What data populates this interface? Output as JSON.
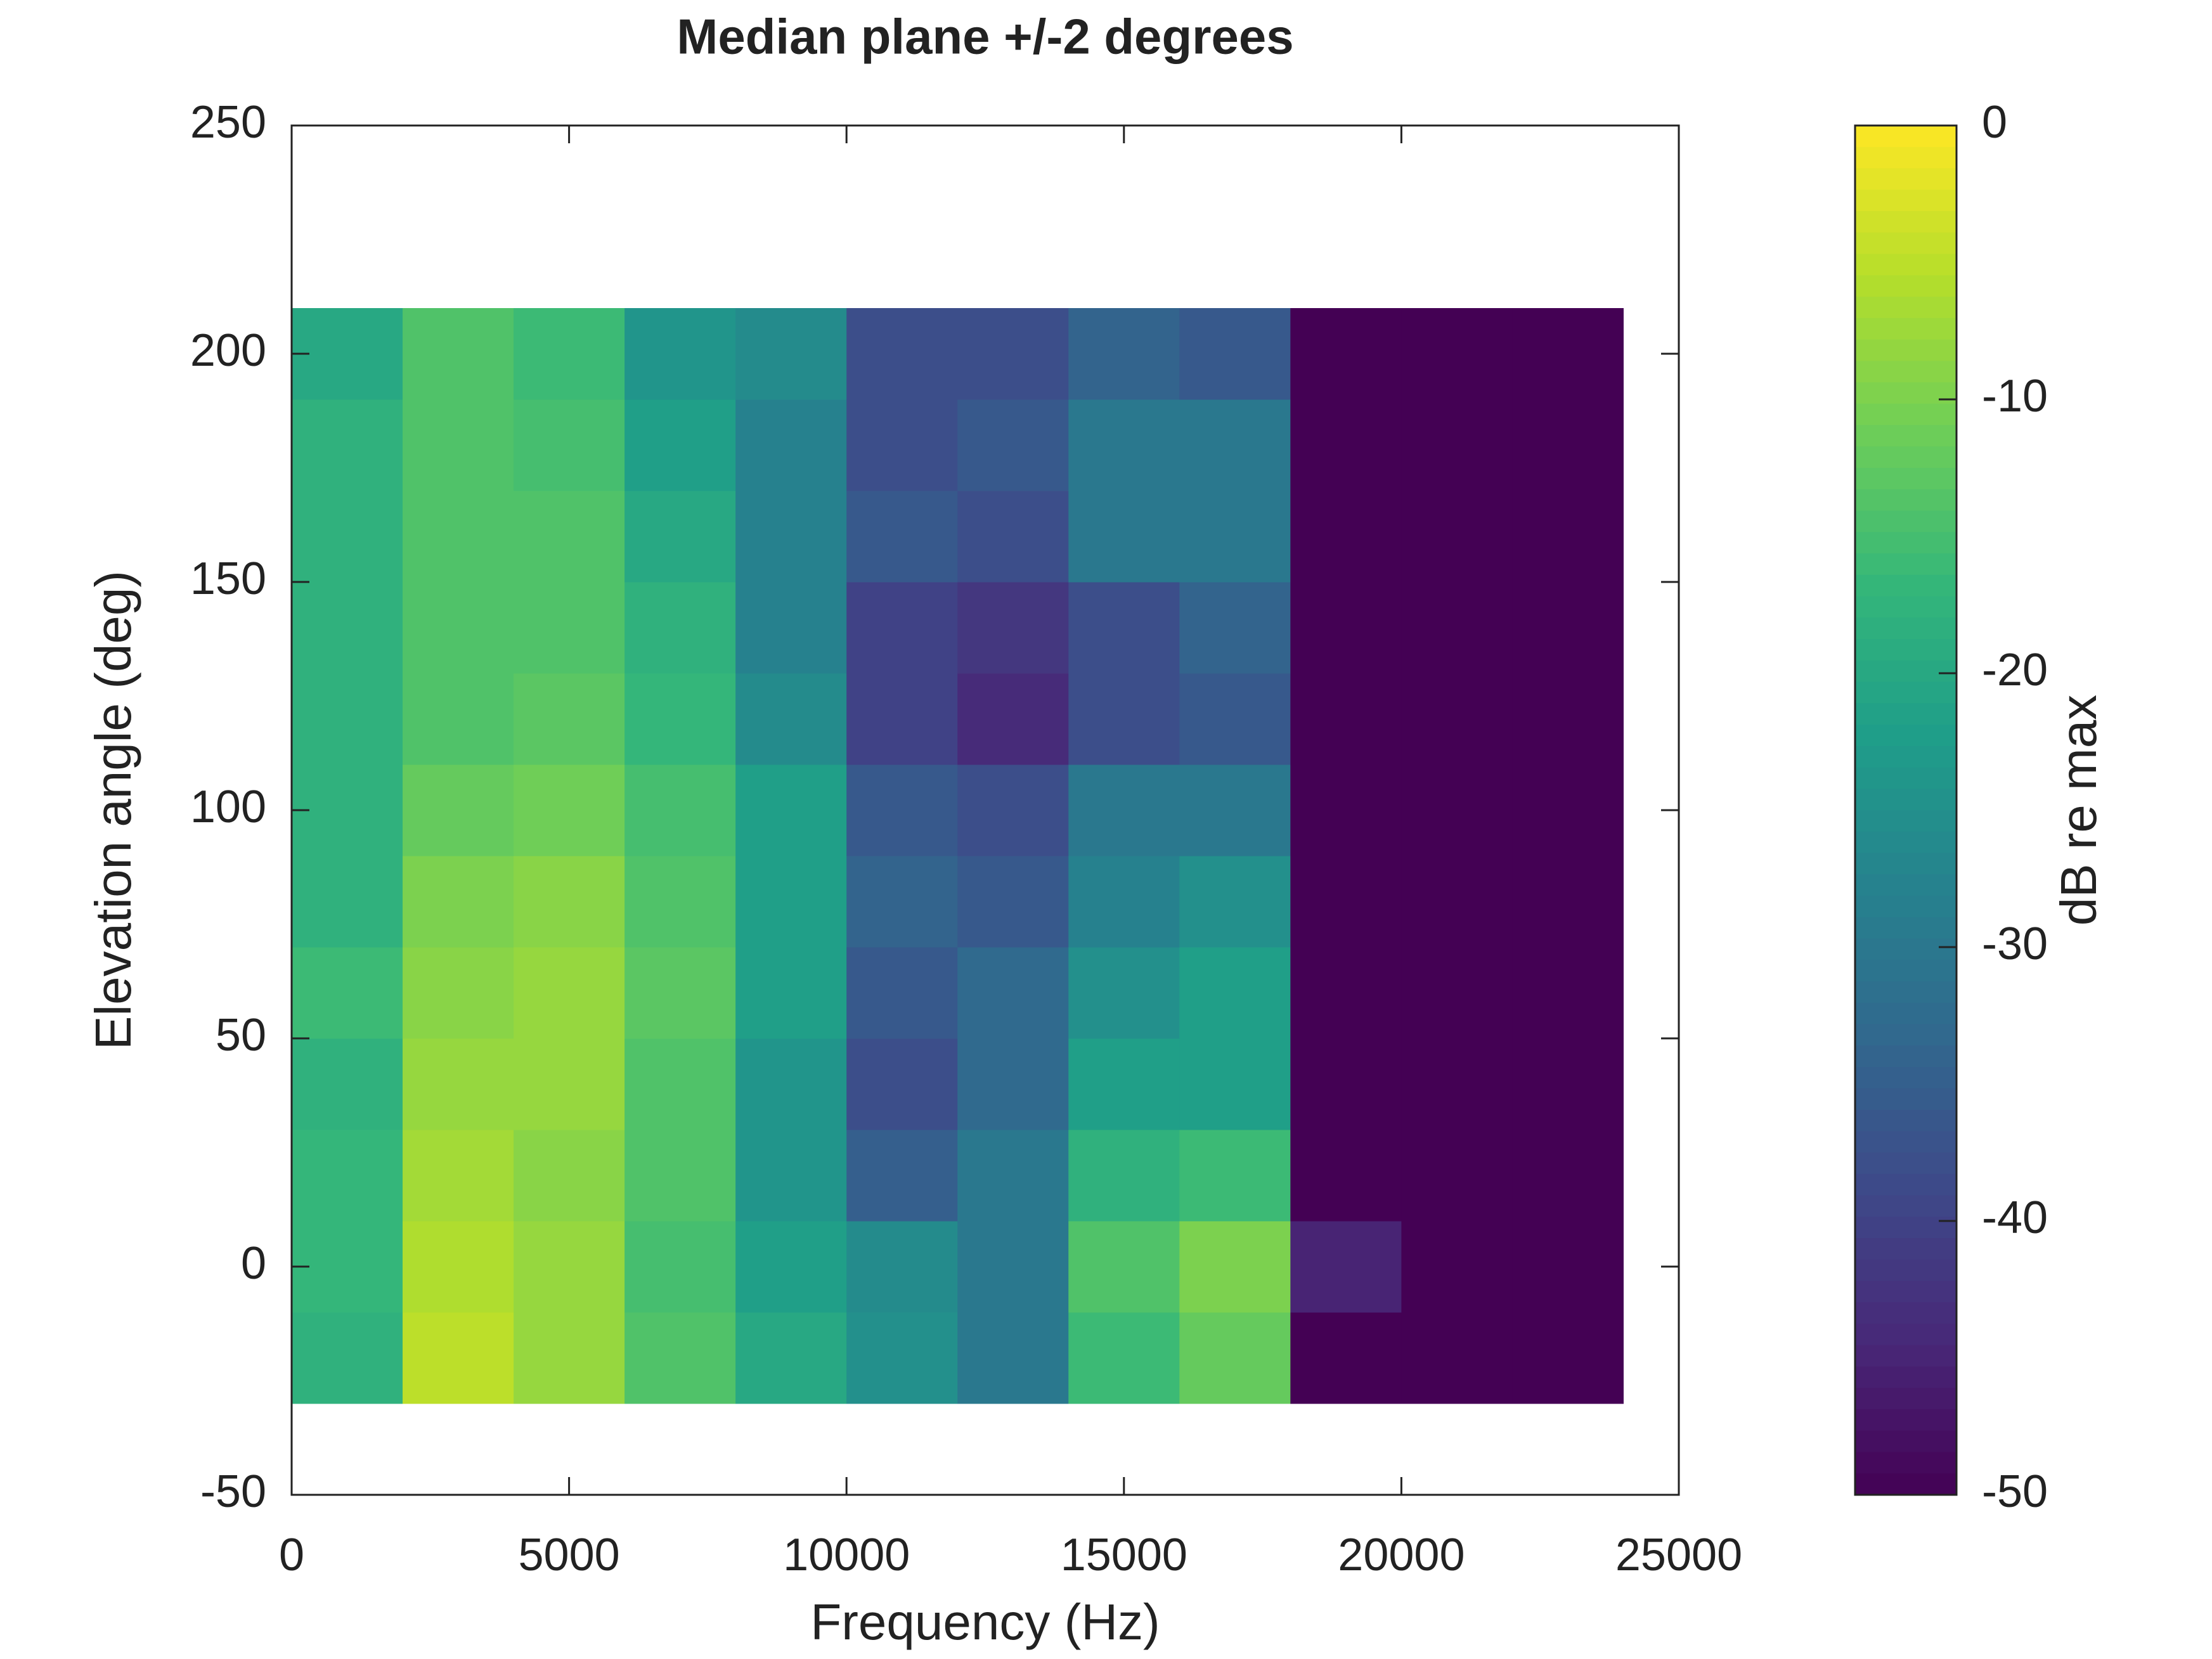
{
  "chart_data": {
    "type": "heatmap",
    "title": "Median plane +/-2 degrees",
    "xlabel": "Frequency (Hz)",
    "ylabel": "Elevation angle (deg)",
    "colorbar_label": "dB re max",
    "xlim": [
      0,
      25000
    ],
    "ylim": [
      -50,
      250
    ],
    "xticks": [
      0,
      5000,
      10000,
      15000,
      20000,
      25000
    ],
    "yticks": [
      -50,
      0,
      50,
      100,
      150,
      200,
      250
    ],
    "clim": [
      -50,
      0
    ],
    "cticks": [
      -50,
      -40,
      -30,
      -20,
      -10,
      0
    ],
    "colormap": [
      "#440154",
      "#482878",
      "#3e4989",
      "#31688e",
      "#26828e",
      "#1f9e89",
      "#35b779",
      "#6ece58",
      "#b5de2b",
      "#fde725"
    ],
    "xbins": [
      0,
      2000,
      4000,
      6000,
      8000,
      10000,
      12000,
      14000,
      16000,
      18000,
      20000,
      22000,
      24000
    ],
    "ybins": [
      -30,
      -10,
      10,
      30,
      50,
      70,
      90,
      110,
      130,
      150,
      170,
      190,
      210
    ],
    "values": [
      [
        -18,
        -5,
        -8,
        -14,
        -20,
        -25,
        -30,
        -16,
        -12,
        -50,
        -50,
        -50
      ],
      [
        -17,
        -6,
        -8,
        -15,
        -22,
        -26,
        -30,
        -14,
        -10,
        -45,
        -50,
        -50
      ],
      [
        -17,
        -7,
        -9,
        -14,
        -24,
        -35,
        -30,
        -18,
        -16,
        -50,
        -50,
        -50
      ],
      [
        -18,
        -8,
        -8,
        -14,
        -24,
        -38,
        -33,
        -22,
        -22,
        -50,
        -50,
        -50
      ],
      [
        -16,
        -9,
        -8,
        -13,
        -22,
        -36,
        -33,
        -25,
        -22,
        -50,
        -50,
        -50
      ],
      [
        -18,
        -10,
        -9,
        -14,
        -22,
        -34,
        -36,
        -28,
        -25,
        -50,
        -50,
        -50
      ],
      [
        -18,
        -12,
        -11,
        -15,
        -22,
        -36,
        -38,
        -30,
        -30,
        -50,
        -50,
        -50
      ],
      [
        -18,
        -14,
        -13,
        -17,
        -26,
        -40,
        -44,
        -38,
        -36,
        -50,
        -50,
        -50
      ],
      [
        -18,
        -14,
        -14,
        -18,
        -28,
        -40,
        -42,
        -38,
        -34,
        -50,
        -50,
        -50
      ],
      [
        -18,
        -14,
        -14,
        -20,
        -28,
        -36,
        -38,
        -30,
        -30,
        -50,
        -50,
        -50
      ],
      [
        -18,
        -14,
        -15,
        -22,
        -28,
        -38,
        -36,
        -30,
        -30,
        -50,
        -50,
        -50
      ],
      [
        -20,
        -14,
        -16,
        -24,
        -26,
        -38,
        -38,
        -34,
        -36,
        -50,
        -50,
        -50
      ]
    ]
  }
}
